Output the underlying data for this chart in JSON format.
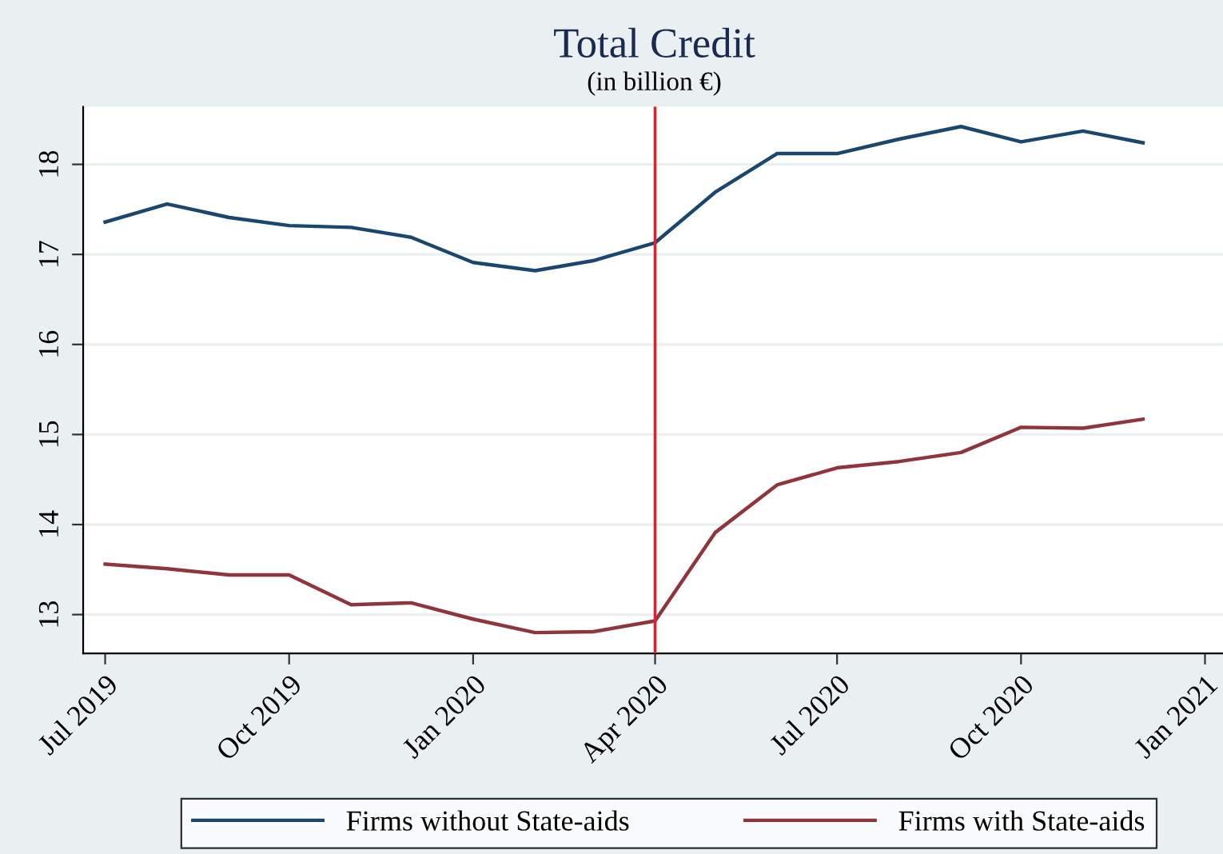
{
  "chart_data": {
    "type": "line",
    "title": "Total Credit",
    "subtitle": "(in billion €)",
    "x": [
      "2019-07",
      "2019-08",
      "2019-09",
      "2019-10",
      "2019-11",
      "2019-12",
      "2020-01",
      "2020-02",
      "2020-03",
      "2020-04",
      "2020-05",
      "2020-06",
      "2020-07",
      "2020-08",
      "2020-09",
      "2020-10",
      "2020-11",
      "2020-12"
    ],
    "series": [
      {
        "name": "Firms without State-aids",
        "color": "#1a476f",
        "values": [
          17.36,
          17.56,
          17.41,
          17.32,
          17.3,
          17.19,
          16.91,
          16.82,
          16.93,
          17.13,
          17.69,
          18.12,
          18.12,
          18.28,
          18.42,
          18.25,
          18.37,
          18.24
        ]
      },
      {
        "name": "Firms with State-aids",
        "color": "#90353b",
        "values": [
          13.56,
          13.51,
          13.44,
          13.44,
          13.11,
          13.13,
          12.95,
          12.8,
          12.81,
          12.93,
          13.91,
          14.44,
          14.63,
          14.7,
          14.8,
          15.08,
          15.07,
          15.17
        ]
      }
    ],
    "xlim": [
      "2019-06-20",
      "2021-01-10"
    ],
    "xticks": [
      {
        "value": "2019-07",
        "label": "Jul 2019"
      },
      {
        "value": "2019-10",
        "label": "Oct 2019"
      },
      {
        "value": "2020-01",
        "label": "Jan 2020"
      },
      {
        "value": "2020-04",
        "label": "Apr 2020"
      },
      {
        "value": "2020-07",
        "label": "Jul 2020"
      },
      {
        "value": "2020-10",
        "label": "Oct 2020"
      },
      {
        "value": "2021-01",
        "label": "Jan 2021"
      }
    ],
    "ylim": [
      12.57,
      18.64
    ],
    "yticks": [
      13,
      14,
      15,
      16,
      17,
      18
    ],
    "ref_lines": [
      {
        "axis": "x",
        "value": "2020-04",
        "color": "#e0202f"
      }
    ],
    "grid": "y",
    "legend": "bottom",
    "marker": "none",
    "line_style": "solid"
  }
}
